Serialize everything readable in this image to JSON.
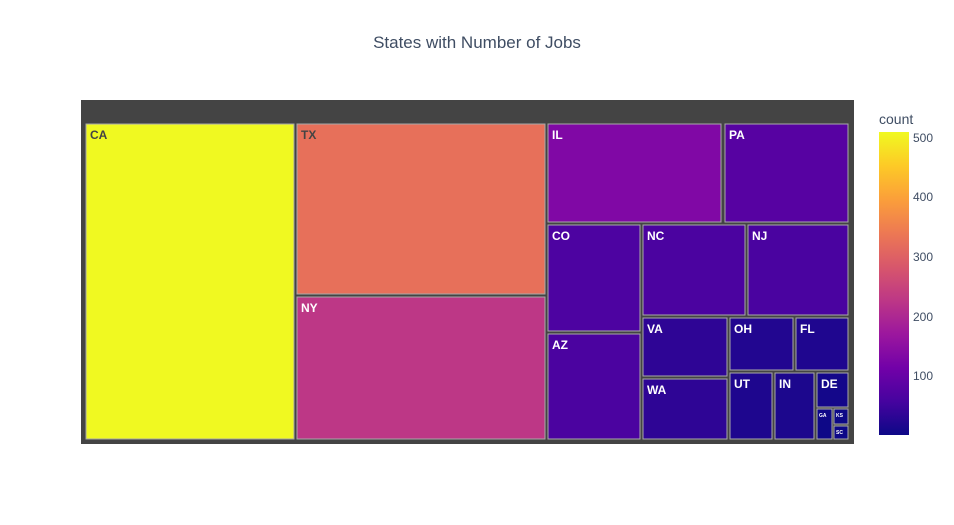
{
  "chart_data": {
    "type": "treemap",
    "title": "States with Number of Jobs",
    "colorbar_title": "count",
    "colorscale": [
      "#0d0887",
      "#46039f",
      "#7201a8",
      "#9c179e",
      "#bd3786",
      "#d8576b",
      "#ed7953",
      "#fb9f3a",
      "#fdca26",
      "#f0f921"
    ],
    "color_range": [
      1,
      510
    ],
    "colorbar_ticks": [
      100,
      200,
      300,
      400,
      500
    ],
    "frame_color": "#444444",
    "items": [
      {
        "label": "CA",
        "value": 510
      },
      {
        "label": "TX",
        "value": 325
      },
      {
        "label": "NY",
        "value": 227
      },
      {
        "label": "IL",
        "value": 133
      },
      {
        "label": "PA",
        "value": 79
      },
      {
        "label": "CO",
        "value": 67
      },
      {
        "label": "NC",
        "value": 64
      },
      {
        "label": "NJ",
        "value": 63
      },
      {
        "label": "AZ",
        "value": 64
      },
      {
        "label": "VA",
        "value": 34
      },
      {
        "label": "WA",
        "value": 34
      },
      {
        "label": "OH",
        "value": 22
      },
      {
        "label": "FL",
        "value": 19
      },
      {
        "label": "UT",
        "value": 18
      },
      {
        "label": "IN",
        "value": 16
      },
      {
        "label": "DE",
        "value": 8
      },
      {
        "label": "GA",
        "value": 2
      },
      {
        "label": "KS",
        "value": 1
      },
      {
        "label": "SC",
        "value": 1
      }
    ]
  }
}
